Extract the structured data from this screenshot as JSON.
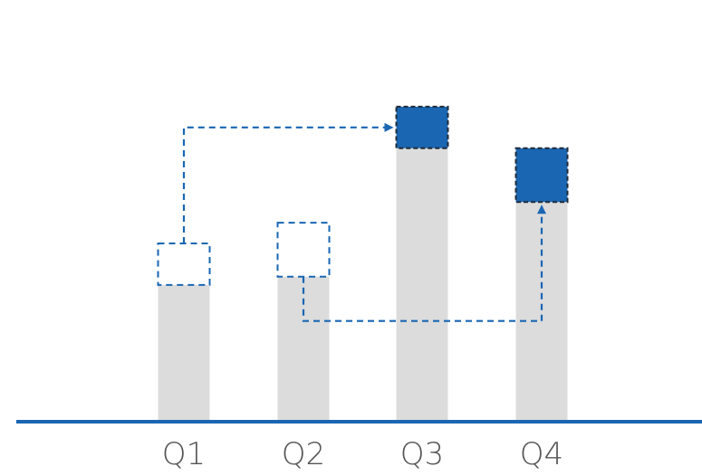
{
  "chart_data": {
    "type": "bar",
    "title": "",
    "xlabel": "",
    "ylabel": "",
    "categories": [
      "Q1",
      "Q2",
      "Q3",
      "Q4"
    ],
    "values": [
      43,
      48,
      76,
      66
    ],
    "ylim": [
      0,
      100
    ],
    "grid": false,
    "moved": [
      {
        "from": "Q1",
        "to": "Q3",
        "amount": 10
      },
      {
        "from": "Q2",
        "to": "Q4",
        "amount": 13
      }
    ],
    "colors": {
      "base": "#dcdcdc",
      "moved_fill": "#1a66b2",
      "dashed": "#1a66b2",
      "moved_outline": "#1f2b3a",
      "axis": "#1a66b2"
    }
  }
}
